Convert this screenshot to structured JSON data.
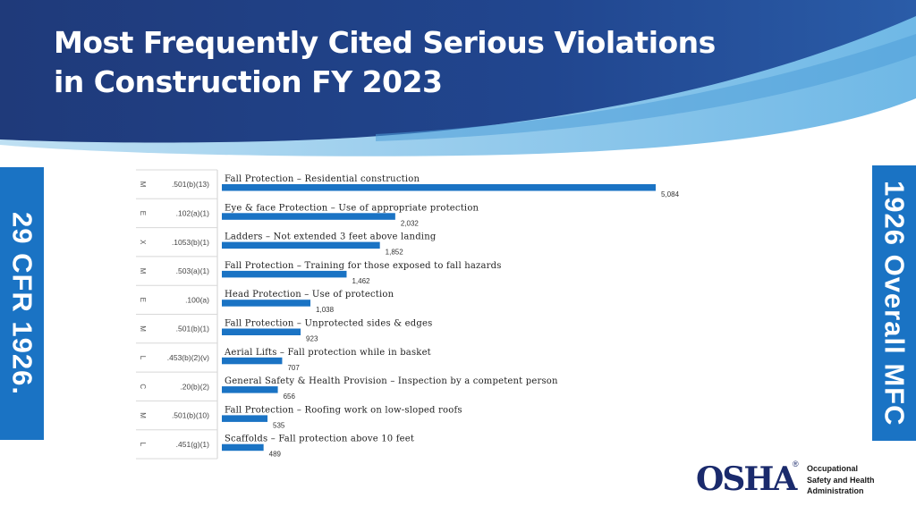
{
  "title": {
    "line1": "Most Frequently Cited Serious Violations",
    "line2": "in Construction FY 2023"
  },
  "left_label": "29 CFR 1926.",
  "right_label": "1926 Overall MFC",
  "logo": {
    "wordmark": "OSHA",
    "registered": "®",
    "lines": [
      "Occupational",
      "Safety and Health",
      "Administration"
    ]
  },
  "colors": {
    "bar": "#1a73c4",
    "side_bar": "#1a73c4",
    "header_dark": "#1f3e82",
    "header_light": "#8ec6e8"
  },
  "chart_data": {
    "type": "bar",
    "orientation": "horizontal",
    "categories": [
      ".501(b)(13)",
      ".102(a)(1)",
      ".1053(b)(1)",
      ".503(a)(1)",
      ".100(a)",
      ".501(b)(1)",
      ".453(b)(2)(v)",
      ".20(b)(2)",
      ".501(b)(10)",
      ".451(g)(1)"
    ],
    "codes": [
      "M",
      "E",
      "X",
      "M",
      "E",
      "M",
      "L",
      "C",
      "M",
      "L"
    ],
    "labels": [
      "Fall Protection – Residential construction",
      "Eye & face Protection – Use of appropriate protection",
      "Ladders – Not extended 3 feet above landing",
      "Fall Protection – Training for those exposed to fall hazards",
      "Head Protection – Use of protection",
      "Fall Protection – Unprotected sides & edges",
      "Aerial Lifts – Fall protection while in basket",
      "General Safety & Health Provision – Inspection by a competent person",
      "Fall Protection – Roofing work on low-sloped roofs",
      "Scaffolds – Fall protection above 10 feet"
    ],
    "values": [
      5084,
      2032,
      1852,
      1462,
      1038,
      923,
      707,
      656,
      535,
      489
    ],
    "value_labels": [
      "5,084",
      "2,032",
      "1,852",
      "1,462",
      "1,038",
      "923",
      "707",
      "656",
      "535",
      "489"
    ],
    "xlim": [
      0,
      5084
    ]
  }
}
